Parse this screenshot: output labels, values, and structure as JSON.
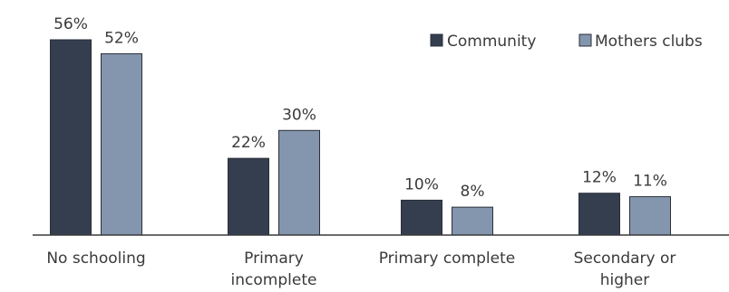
{
  "chart_data": {
    "type": "bar",
    "categories": [
      [
        "No schooling"
      ],
      [
        "Primary",
        "incomplete"
      ],
      [
        "Primary complete"
      ],
      [
        "Secondary or",
        "higher"
      ]
    ],
    "series": [
      {
        "name": "Community",
        "values": [
          56,
          22,
          10,
          12
        ],
        "labels": [
          "56%",
          "22%",
          "10%",
          "12%"
        ],
        "color": "#343e4f"
      },
      {
        "name": "Mothers clubs",
        "values": [
          52,
          30,
          8,
          11
        ],
        "labels": [
          "52%",
          "30%",
          "8%",
          "11%"
        ],
        "color": "#8496ae"
      }
    ],
    "ylim": [
      0,
      56
    ],
    "legend_position": "top-right",
    "grid": false,
    "axis_color": "#3a3a3a"
  }
}
